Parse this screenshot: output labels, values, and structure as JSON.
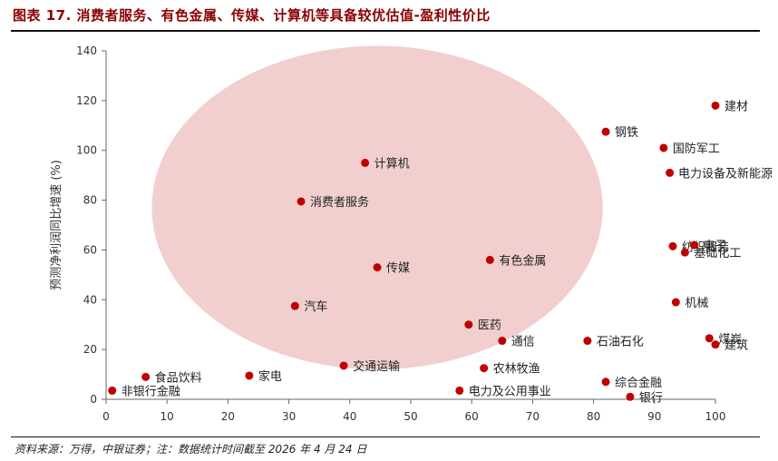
{
  "header": {
    "title": "图表 17. 消费者服务、有色金属、传媒、计算机等具备较优估值-盈利性价比"
  },
  "footer": {
    "source": "资料来源：万得，中银证券；注：数据统计时间截至 2026 年 4 月 24 日"
  },
  "colors": {
    "point": "#c00000",
    "ellipse": "#efc7c7",
    "axis": "#666666"
  },
  "chart_data": {
    "type": "scatter",
    "title": "",
    "xlabel": "",
    "ylabel": "预测净利润同比增速 (%)",
    "xlim": [
      0,
      100
    ],
    "ylim": [
      0,
      140
    ],
    "xticks": [
      0,
      10,
      20,
      30,
      40,
      50,
      60,
      70,
      80,
      90,
      100
    ],
    "yticks": [
      0,
      20,
      40,
      60,
      80,
      100,
      120,
      140
    ],
    "grid": false,
    "legend": "none",
    "highlight_ellipse": {
      "cx": 44.5,
      "cy": 77,
      "rx": 37,
      "ry": 65
    },
    "points": [
      {
        "label": "建材",
        "x": 100,
        "y": 118
      },
      {
        "label": "钢铁",
        "x": 82,
        "y": 107.5
      },
      {
        "label": "国防军工",
        "x": 91.5,
        "y": 101
      },
      {
        "label": "电力设备及新能源",
        "x": 92.5,
        "y": 91
      },
      {
        "label": "计算机",
        "x": 42.5,
        "y": 95
      },
      {
        "label": "消费者服务",
        "x": 32,
        "y": 79.5
      },
      {
        "label": "纺织服装",
        "x": 93,
        "y": 61.5
      },
      {
        "label": "电子",
        "x": 96.5,
        "y": 62
      },
      {
        "label": "基础化工",
        "x": 95,
        "y": 59
      },
      {
        "label": "有色金属",
        "x": 63,
        "y": 56
      },
      {
        "label": "传媒",
        "x": 44.5,
        "y": 53
      },
      {
        "label": "机械",
        "x": 93.5,
        "y": 39
      },
      {
        "label": "汽车",
        "x": 31,
        "y": 37.5
      },
      {
        "label": "医药",
        "x": 59.5,
        "y": 30
      },
      {
        "label": "通信",
        "x": 65,
        "y": 23.5
      },
      {
        "label": "石油石化",
        "x": 79,
        "y": 23.5
      },
      {
        "label": "煤炭",
        "x": 99,
        "y": 24.5
      },
      {
        "label": "建筑",
        "x": 100,
        "y": 22
      },
      {
        "label": "交通运输",
        "x": 39,
        "y": 13.5
      },
      {
        "label": "农林牧渔",
        "x": 62,
        "y": 12.5
      },
      {
        "label": "家电",
        "x": 23.5,
        "y": 9.5
      },
      {
        "label": "食品饮料",
        "x": 6.5,
        "y": 9
      },
      {
        "label": "综合金融",
        "x": 82,
        "y": 7
      },
      {
        "label": "非银行金融",
        "x": 1,
        "y": 3.5
      },
      {
        "label": "电力及公用事业",
        "x": 58,
        "y": 3.5
      },
      {
        "label": "银行",
        "x": 86,
        "y": 1
      }
    ]
  }
}
